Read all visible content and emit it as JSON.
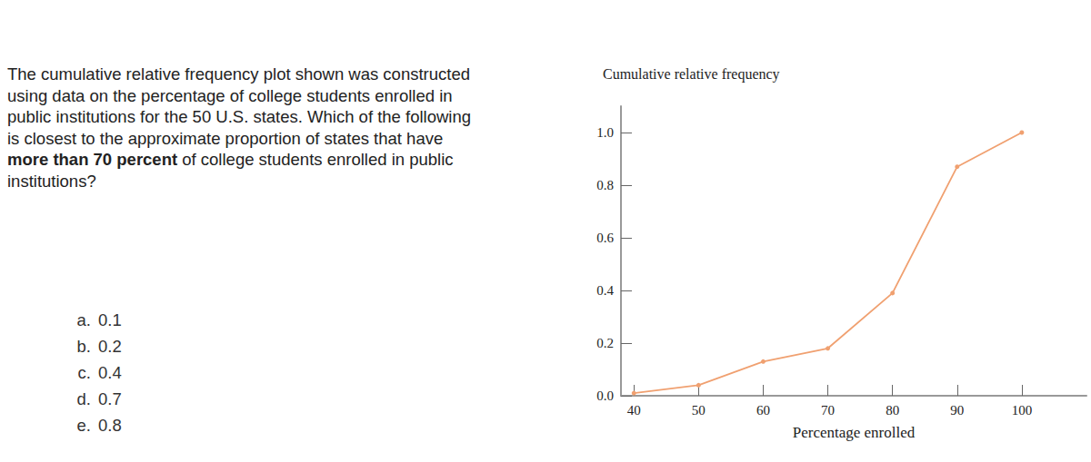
{
  "question": [
    {
      "text": "The cumulative relative frequency plot shown was constructed using data on the percentage of college students enrolled in public institutions for the 50 U.S. states. Which of the following is closest to the approximate proportion of states that have ",
      "bold": false
    },
    {
      "text": "more than 70 percent",
      "bold": true
    },
    {
      "text": " of college students enrolled in public institutions?",
      "bold": false
    }
  ],
  "options": [
    {
      "letter": "a.",
      "text": "0.1"
    },
    {
      "letter": "b.",
      "text": "0.2"
    },
    {
      "letter": "c.",
      "text": "0.4"
    },
    {
      "letter": "d.",
      "text": "0.7"
    },
    {
      "letter": "e.",
      "text": "0.8"
    }
  ],
  "chart_data": {
    "type": "line",
    "y_label": "Cumulative relative frequency",
    "x_label": "Percentage enrolled",
    "x": [
      40,
      50,
      60,
      70,
      80,
      90,
      100
    ],
    "values": [
      0.01,
      0.04,
      0.13,
      0.18,
      0.39,
      0.87,
      1.0
    ],
    "color": "#f0a070",
    "marker": "circle",
    "xlim": [
      38,
      110
    ],
    "xticks": [
      40,
      50,
      60,
      70,
      80,
      90,
      100
    ],
    "ylim": [
      0,
      1.1
    ],
    "yticks": [
      {
        "value": 0,
        "label": "0.0"
      },
      0.2,
      0.4,
      0.6,
      0.8,
      {
        "value": 1,
        "label": "1.0"
      }
    ],
    "grid": false
  }
}
